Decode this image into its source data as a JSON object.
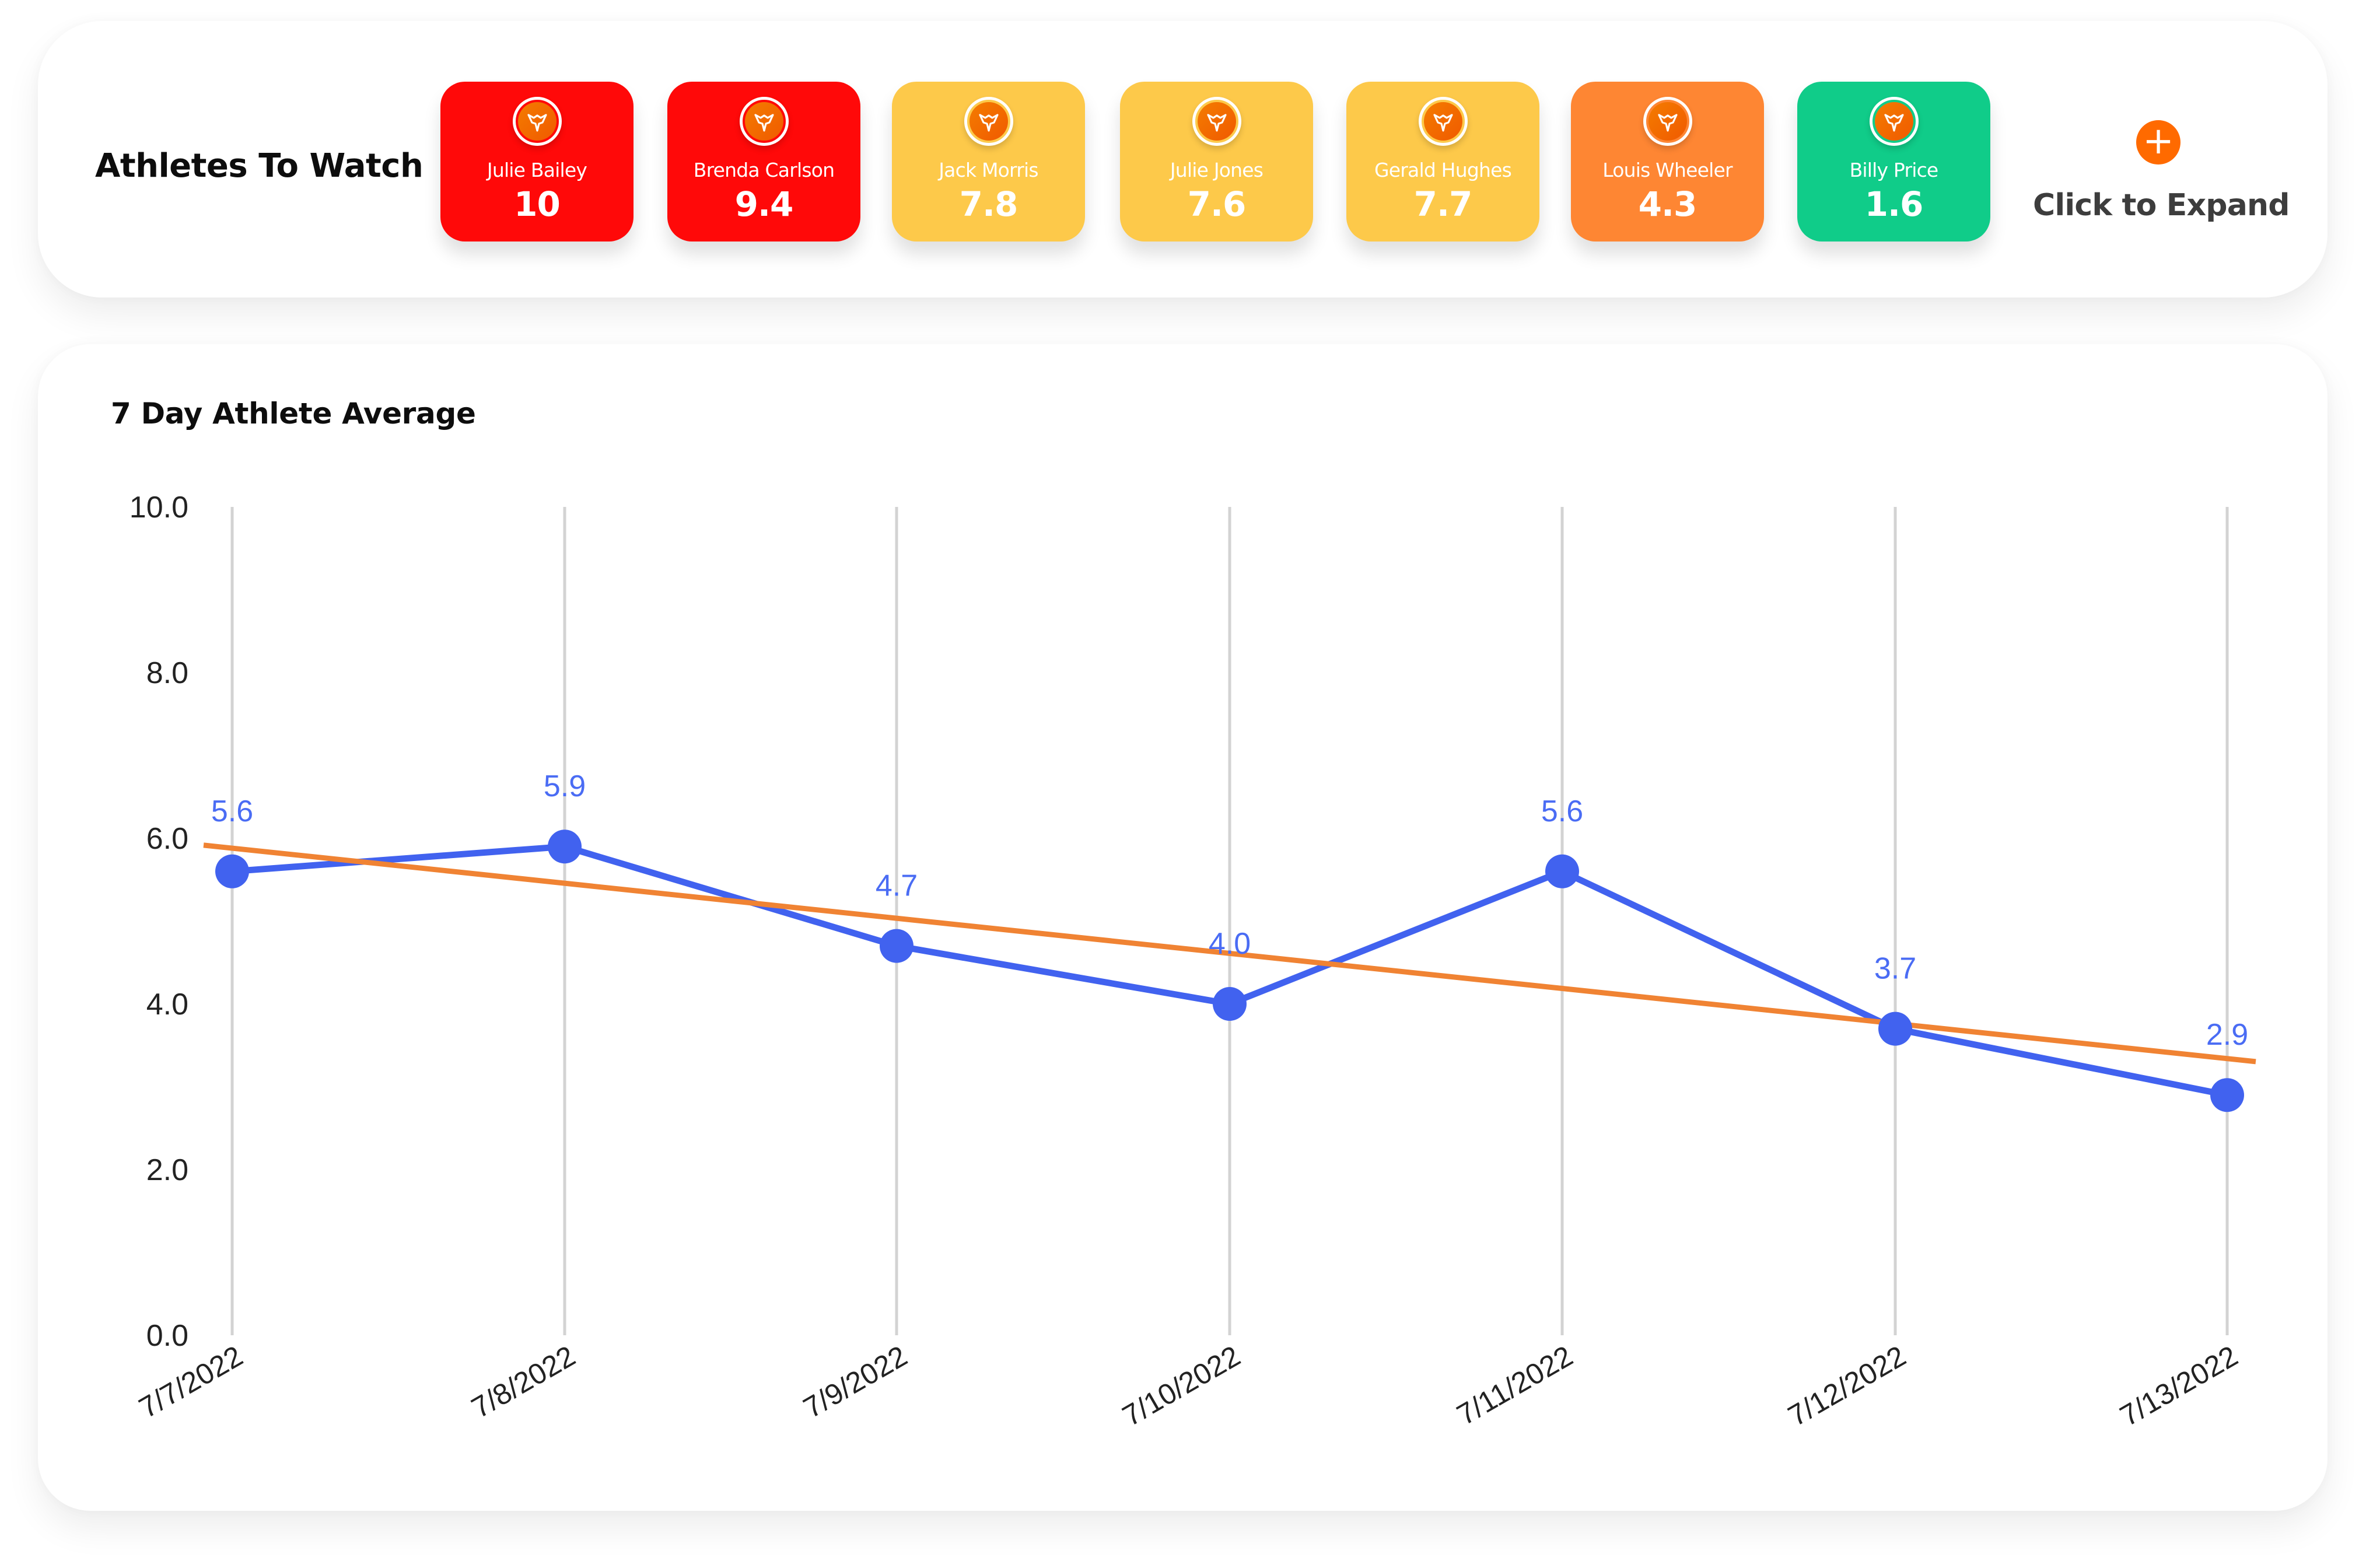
{
  "watch": {
    "title": "Athletes To Watch",
    "athletes": [
      {
        "name": "Julie Bailey",
        "score": "10",
        "color": "#ff0909",
        "icon": "team-logo-icon"
      },
      {
        "name": "Brenda Carlson",
        "score": "9.4",
        "color": "#ff0909",
        "icon": "team-logo-icon"
      },
      {
        "name": "Jack Morris",
        "score": "7.8",
        "color": "#fdc94a",
        "icon": "team-logo-icon"
      },
      {
        "name": "Julie Jones",
        "score": "7.6",
        "color": "#fdc94a",
        "icon": "team-logo-icon"
      },
      {
        "name": "Gerald Hughes",
        "score": "7.7",
        "color": "#fdc94a",
        "icon": "team-logo-icon"
      },
      {
        "name": "Louis Wheeler",
        "score": "4.3",
        "color": "#fe8633",
        "icon": "team-logo-icon"
      },
      {
        "name": "Billy Price",
        "score": "1.6",
        "color": "#10cc89",
        "icon": "team-logo-icon"
      }
    ],
    "expand": {
      "icon": "plus-icon",
      "symbol": "+",
      "label": "Click to Expand",
      "color": "#ff6a00"
    }
  },
  "chart": {
    "title": "7 Day Athlete Average"
  },
  "chart_data": {
    "type": "line",
    "title": "7 Day Athlete Average",
    "xlabel": "",
    "ylabel": "",
    "categories": [
      "7/7/2022",
      "7/8/2022",
      "7/9/2022",
      "7/10/2022",
      "7/11/2022",
      "7/12/2022",
      "7/13/2022"
    ],
    "series": [
      {
        "name": "Athlete Average",
        "values": [
          5.6,
          5.9,
          4.7,
          4.0,
          5.6,
          3.7,
          2.9
        ],
        "color": "#4162ef",
        "data_labels": [
          "5.6",
          "5.9",
          "4.7",
          "4.0",
          "5.6",
          "3.7",
          "2.9"
        ],
        "markers": true
      },
      {
        "name": "Trendline",
        "type": "linear-trend",
        "start": 5.88,
        "end": 3.34,
        "color": "#f08333"
      }
    ],
    "ylim": [
      0,
      10
    ],
    "yticks": [
      "0.0",
      "2.0",
      "4.0",
      "6.0",
      "8.0",
      "10.0"
    ],
    "grid": {
      "vertical": true,
      "horizontal": false
    },
    "legend": "none",
    "x_label_rotation": -30
  }
}
